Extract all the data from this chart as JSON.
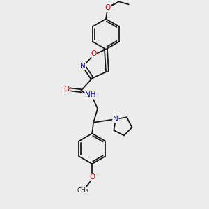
{
  "background_color": "#ececec",
  "bond_color": "#1a1a1a",
  "atom_colors": {
    "O": "#dd0000",
    "N": "#0000cc",
    "C": "#1a1a1a"
  },
  "figsize": [
    3.0,
    3.0
  ],
  "dpi": 100
}
